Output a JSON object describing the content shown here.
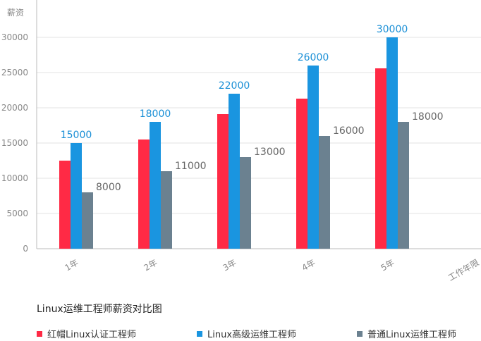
{
  "chart_data": {
    "type": "bar",
    "title": "Linux运维工程师薪资对比图",
    "ylabel": "薪资",
    "xlabel": "工作年限",
    "ylim": [
      0,
      30000
    ],
    "yticks": [
      0,
      5000,
      10000,
      15000,
      20000,
      25000,
      30000
    ],
    "categories": [
      "1年",
      "2年",
      "3年",
      "4年",
      "5年"
    ],
    "grid": true,
    "legend_position": "bottom",
    "series": [
      {
        "name": "红帽Linux认证工程师",
        "color": "#ff2a45",
        "values": [
          12500,
          15500,
          19100,
          21300,
          25600
        ],
        "show_labels": false
      },
      {
        "name": "Linux高级运维工程师",
        "color": "#1a95e0",
        "values": [
          15000,
          18000,
          22000,
          26000,
          30000
        ],
        "show_labels": true,
        "label_color": "#1a8fd6"
      },
      {
        "name": "普通Linux运维工程师",
        "color": "#6b8190",
        "values": [
          8000,
          11000,
          13000,
          16000,
          18000
        ],
        "show_labels": true,
        "label_color": "#666666"
      }
    ]
  }
}
